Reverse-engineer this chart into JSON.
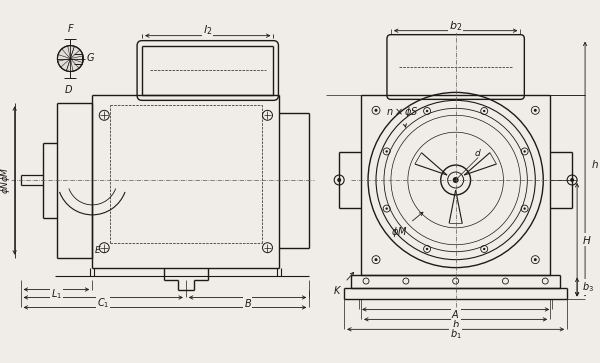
{
  "bg_color": "#f0ede8",
  "line_color": "#1a1a1a",
  "dim_color": "#1a1a1a",
  "figsize": [
    6.0,
    3.63
  ],
  "dpi": 100
}
